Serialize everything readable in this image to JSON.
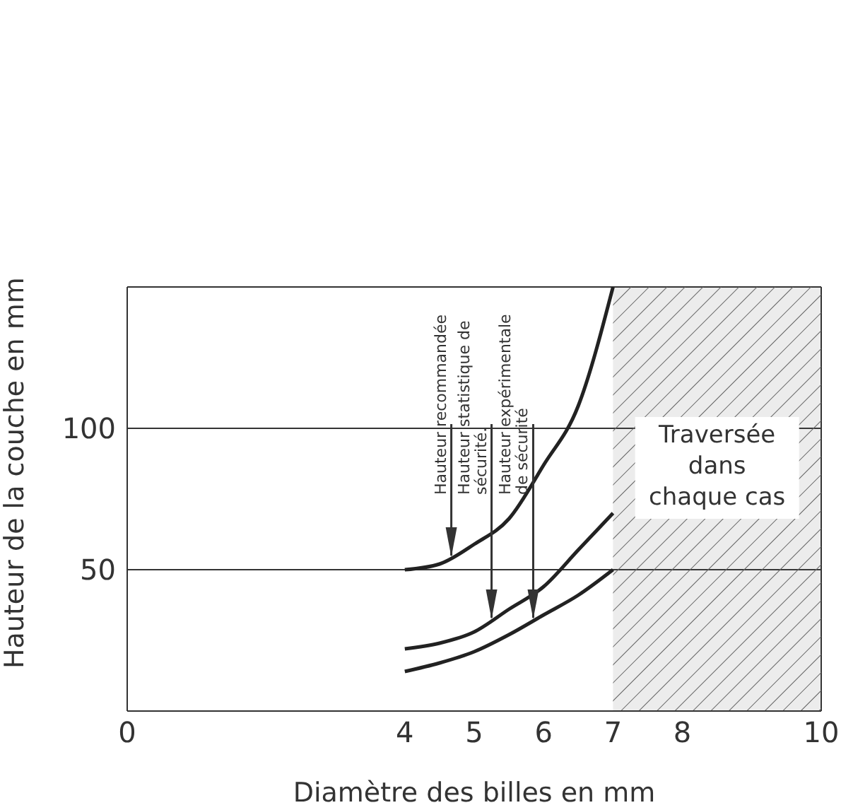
{
  "chart_data": {
    "type": "line",
    "xlabel": "Diamètre des billes en mm",
    "ylabel": "Hauteur de la couche en mm",
    "xlim": [
      0,
      10
    ],
    "xticks": [
      0,
      4,
      5,
      6,
      7,
      8,
      10
    ],
    "ylim": [
      0,
      150
    ],
    "yticks": [
      50,
      100
    ],
    "grid": true,
    "marker": "none",
    "line_style": "solid",
    "series": [
      {
        "color": "#222222",
        "x": [
          4,
          4.5,
          5,
          5.5,
          6,
          6.5,
          7
        ],
        "values": [
          50,
          52,
          59,
          68,
          87,
          108,
          150
        ]
      },
      {
        "color": "#222222",
        "x": [
          4,
          4.5,
          5,
          5.5,
          6,
          6.5,
          7
        ],
        "values": [
          22,
          24,
          28,
          36,
          44,
          57,
          70
        ]
      },
      {
        "color": "#222222",
        "x": [
          4,
          4.5,
          5,
          5.5,
          6,
          6.5,
          7
        ],
        "values": [
          14,
          17,
          21,
          27,
          34,
          41,
          50
        ]
      }
    ],
    "annotations": [
      {
        "text": "Hauteur recommandée",
        "x": 4.67,
        "y": 54
      },
      {
        "text": "Hauteur statistique de\nsécurité.",
        "x": 5.25,
        "y": 32
      },
      {
        "text": "Hauteur expérimentale\nde sécurité",
        "x": 5.85,
        "y": 32
      }
    ],
    "bands": [
      {
        "axis": "x",
        "from": 7,
        "to": 10,
        "label": "Traversée\ndans\nchaque cas",
        "color": "#666666"
      }
    ]
  }
}
